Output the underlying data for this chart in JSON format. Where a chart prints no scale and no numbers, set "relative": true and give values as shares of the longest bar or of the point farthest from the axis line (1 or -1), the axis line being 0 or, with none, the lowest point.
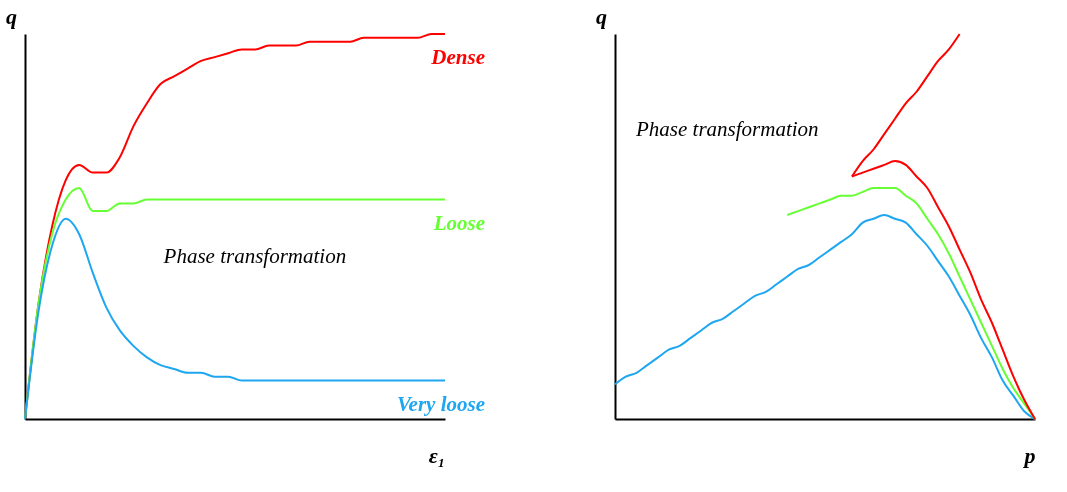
{
  "chart_data": [
    {
      "type": "line",
      "relative": true,
      "xlabel": "ε₁",
      "ylabel": "q",
      "annotations": [
        "Phase transformation"
      ],
      "categories": [
        null,
        null,
        null,
        null,
        null,
        null,
        null,
        null,
        null,
        null,
        null,
        null,
        null,
        null,
        null,
        null,
        null,
        null,
        null,
        null,
        null,
        null,
        null,
        null,
        null,
        null,
        null,
        null,
        null,
        null,
        null,
        null
      ],
      "series": [
        {
          "name": "Dense",
          "color": "#ff0000",
          "values": [
            0,
            0.3,
            0.5,
            0.62,
            0.66,
            0.64,
            0.64,
            0.68,
            0.76,
            0.82,
            0.87,
            0.89,
            0.91,
            0.93,
            0.94,
            0.95,
            0.96,
            0.96,
            0.97,
            0.97,
            0.97,
            0.98,
            0.98,
            0.98,
            0.98,
            0.99,
            0.99,
            0.99,
            0.99,
            0.99,
            1.0,
            1.0
          ]
        },
        {
          "name": "Loose",
          "color": "#66ff33",
          "values": [
            0,
            0.3,
            0.48,
            0.57,
            0.6,
            0.54,
            0.54,
            0.56,
            0.56,
            0.57,
            0.57,
            0.57,
            0.57,
            0.57,
            0.57,
            0.57,
            0.57,
            0.57,
            0.57,
            0.57,
            0.57,
            0.57,
            0.57,
            0.57,
            0.57,
            0.57,
            0.57,
            0.57,
            0.57,
            0.57,
            0.57,
            0.57
          ]
        },
        {
          "name": "Very loose",
          "color": "#1ea7f0",
          "values": [
            0,
            0.28,
            0.45,
            0.52,
            0.48,
            0.38,
            0.29,
            0.23,
            0.19,
            0.16,
            0.14,
            0.13,
            0.12,
            0.12,
            0.11,
            0.11,
            0.1,
            0.1,
            0.1,
            0.1,
            0.1,
            0.1,
            0.1,
            0.1,
            0.1,
            0.1,
            0.1,
            0.1,
            0.1,
            0.1,
            0.1,
            0.1
          ]
        }
      ]
    },
    {
      "type": "line",
      "relative": true,
      "xlabel": "p",
      "ylabel": "q",
      "annotations": [
        "Phase transformation"
      ],
      "categories": [
        null,
        null,
        null,
        null,
        null,
        null,
        null,
        null,
        null,
        null,
        null,
        null,
        null,
        null,
        null,
        null,
        null,
        null,
        null,
        null,
        null,
        null,
        null,
        null,
        null,
        null,
        null,
        null,
        null,
        null,
        null,
        null,
        null,
        null,
        null,
        null,
        null,
        null,
        null,
        null
      ],
      "series": [
        {
          "color": "#1ea7f0",
          "values": [
            0.09,
            0.11,
            0.12,
            0.14,
            0.16,
            0.18,
            0.19,
            0.21,
            0.23,
            0.25,
            0.26,
            0.28,
            0.3,
            0.32,
            0.33,
            0.35,
            0.37,
            0.39,
            0.4,
            0.42,
            0.44,
            0.46,
            0.48,
            0.51,
            0.52,
            0.53,
            0.52,
            0.51,
            0.48,
            0.45,
            0.41,
            0.37,
            0.32,
            0.27,
            0.21,
            0.16,
            0.1,
            0.06,
            0.02,
            0
          ]
        },
        {
          "color": "#66ff33",
          "values": [
            null,
            null,
            null,
            null,
            null,
            null,
            null,
            null,
            null,
            null,
            null,
            null,
            null,
            null,
            null,
            null,
            0.53,
            0.54,
            0.55,
            0.56,
            0.57,
            0.58,
            0.58,
            0.59,
            0.6,
            0.6,
            0.6,
            0.58,
            0.56,
            0.52,
            0.48,
            0.43,
            0.37,
            0.31,
            0.25,
            0.19,
            0.13,
            0.08,
            0.04,
            0
          ]
        },
        {
          "color": "#ff0000",
          "values": [
            null,
            null,
            null,
            null,
            null,
            null,
            null,
            null,
            null,
            null,
            null,
            null,
            null,
            null,
            null,
            null,
            null,
            null,
            null,
            null,
            null,
            null,
            0.63,
            0.64,
            0.65,
            0.66,
            0.67,
            0.66,
            0.63,
            0.6,
            0.55,
            0.5,
            0.44,
            0.38,
            0.31,
            0.25,
            0.18,
            0.11,
            0.05,
            0
          ]
        },
        {
          "color": "#ff0000",
          "values": [
            null,
            null,
            null,
            null,
            null,
            null,
            null,
            null,
            null,
            null,
            null,
            null,
            null,
            null,
            null,
            null,
            null,
            null,
            null,
            null,
            null,
            null,
            0.63,
            0.67,
            0.7,
            0.74,
            0.78,
            0.82,
            0.85,
            0.89,
            0.93,
            0.96,
            1.0,
            null,
            null,
            null,
            null,
            null,
            null,
            null
          ]
        }
      ]
    }
  ]
}
